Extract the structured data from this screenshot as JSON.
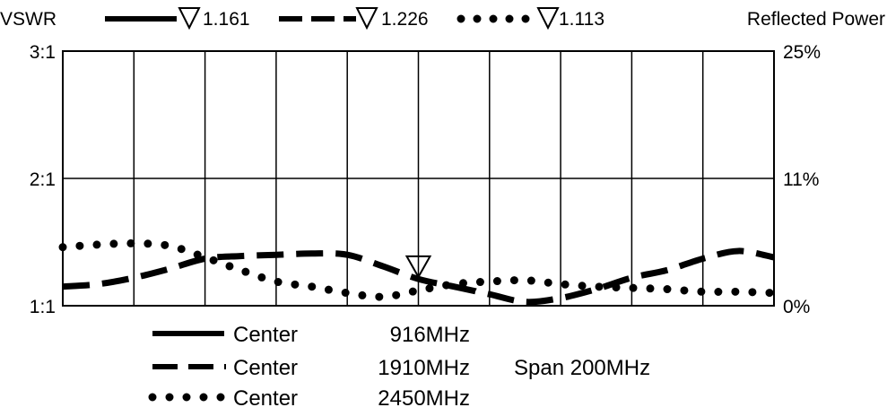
{
  "chart_data": {
    "type": "line",
    "left_axis_title": "VSWR",
    "right_axis_title": "Reflected Power",
    "left_ticks": [
      {
        "label": "3:1",
        "vswr": 3
      },
      {
        "label": "2:1",
        "vswr": 2
      },
      {
        "label": "1:1",
        "vswr": 1
      }
    ],
    "right_ticks": [
      {
        "label": "25%",
        "vswr": 3
      },
      {
        "label": "11%",
        "vswr": 2
      },
      {
        "label": "0%",
        "vswr": 1
      }
    ],
    "ylim": [
      1,
      3
    ],
    "x_divisions": 10,
    "span_label": "Span 200MHz",
    "marker": {
      "x_division": 5,
      "vswr": 1.226
    },
    "series": [
      {
        "style": "solid",
        "marker_label": "1.161",
        "center_label": "Center",
        "freq_label": "916MHz",
        "x": [],
        "values": []
      },
      {
        "style": "dashed",
        "marker_label": "1.226",
        "center_label": "Center",
        "freq_label": "1910MHz",
        "x": [
          0,
          0.5,
          1,
          1.5,
          2,
          2.5,
          3,
          3.5,
          4,
          4.5,
          5,
          5.5,
          6,
          6.5,
          7,
          7.5,
          8,
          8.5,
          9,
          9.5,
          10
        ],
        "values": [
          1.15,
          1.17,
          1.22,
          1.29,
          1.37,
          1.39,
          1.4,
          1.41,
          1.4,
          1.31,
          1.21,
          1.15,
          1.09,
          1.03,
          1.06,
          1.13,
          1.22,
          1.28,
          1.37,
          1.43,
          1.38
        ]
      },
      {
        "style": "dotted",
        "marker_label": "1.113",
        "center_label": "Center",
        "freq_label": "2450MHz",
        "x": [
          0,
          0.5,
          1,
          1.5,
          2,
          2.5,
          3,
          3.5,
          4,
          4.5,
          5,
          5.5,
          6,
          6.5,
          7,
          7.5,
          8,
          8.5,
          9,
          9.5,
          10
        ],
        "values": [
          1.46,
          1.48,
          1.49,
          1.47,
          1.38,
          1.28,
          1.19,
          1.15,
          1.1,
          1.07,
          1.12,
          1.17,
          1.19,
          1.2,
          1.17,
          1.15,
          1.14,
          1.13,
          1.11,
          1.11,
          1.1
        ]
      }
    ]
  }
}
